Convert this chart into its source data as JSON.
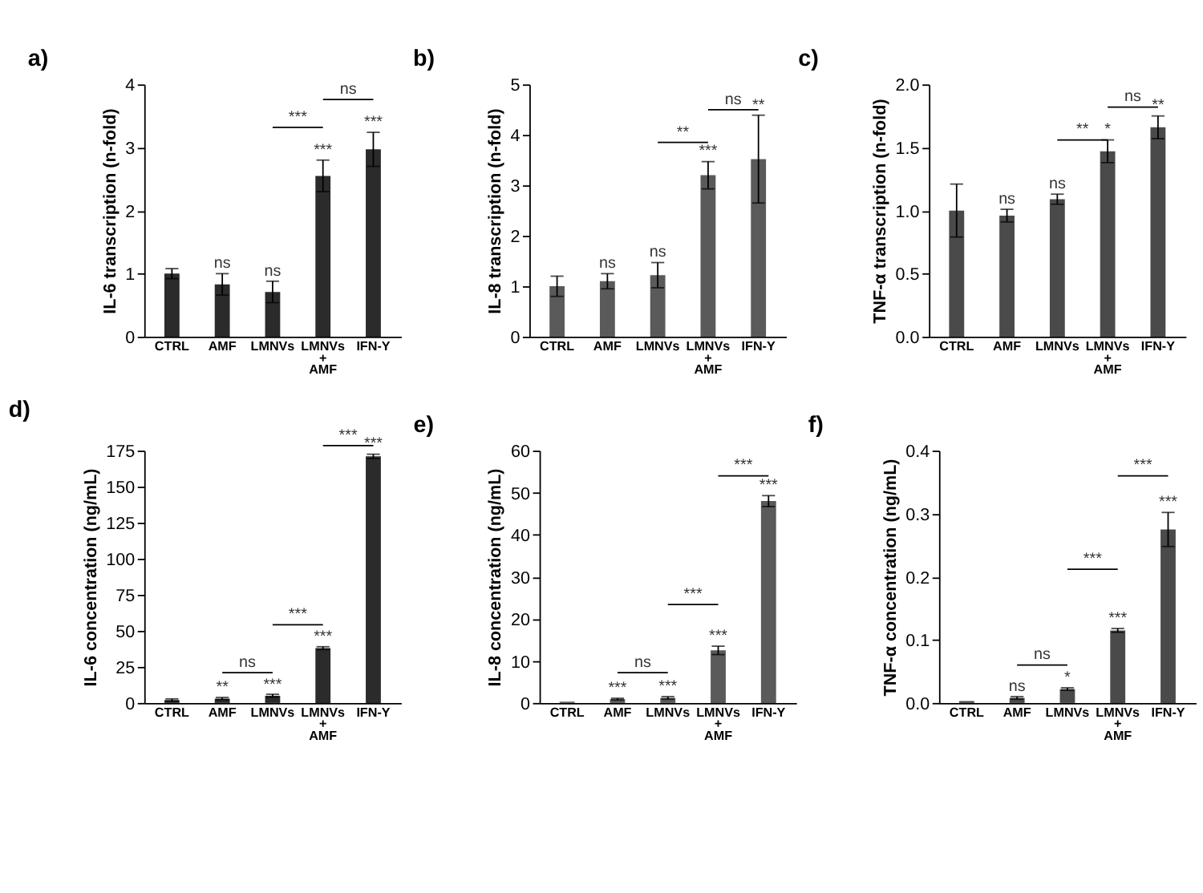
{
  "chart_data": [
    {
      "type": "bar",
      "title": "a)",
      "ylabel": "IL-6 transcription (n-fold)",
      "categories": [
        "CTRL",
        "AMF",
        "LMNVs",
        "LMNVs + AMF",
        "IFN-Y"
      ],
      "values": [
        1.0,
        0.83,
        0.71,
        2.55,
        2.97
      ],
      "errors": [
        0.08,
        0.17,
        0.17,
        0.25,
        0.27
      ],
      "color": "#2b2b2b",
      "ylim": [
        0,
        4
      ],
      "yticks": [
        0,
        1,
        2,
        3,
        4
      ],
      "grid": false,
      "annotations": [
        "***",
        "ns",
        {
          "text": "ns",
          "x": "AMF",
          "y": 1.0
        },
        {
          "text": "ns",
          "x": "LMNVs",
          "y": 0.88
        },
        {
          "text": "***",
          "x": "LMNVs + AMF",
          "y": 2.8
        },
        {
          "text": "***",
          "x": "IFN-Y",
          "y": 3.24
        }
      ]
    },
    {
      "type": "bar",
      "title": "b)",
      "ylabel": "IL-8 transcription (n-fold)",
      "categories": [
        "CTRL",
        "AMF",
        "LMNVs",
        "LMNVs + AMF",
        "IFN-Y"
      ],
      "values": [
        1.0,
        1.1,
        1.22,
        3.2,
        3.52
      ],
      "errors": [
        0.2,
        0.15,
        0.25,
        0.27,
        0.87
      ],
      "color": "#5a5a5a",
      "ylim": [
        0,
        5
      ],
      "yticks": [
        0,
        1,
        2,
        3,
        4,
        5
      ],
      "grid": false,
      "annotations": [
        "**",
        "ns",
        {
          "text": "ns",
          "x": "AMF",
          "y": 1.25
        },
        {
          "text": "ns",
          "x": "LMNVs",
          "y": 1.47
        },
        {
          "text": "***",
          "x": "LMNVs + AMF",
          "y": 3.47
        },
        {
          "text": "**",
          "x": "IFN-Y",
          "y": 4.39
        }
      ]
    },
    {
      "type": "bar",
      "title": "c)",
      "ylabel": "TNF-α transcription (n-fold)",
      "categories": [
        "CTRL",
        "AMF",
        "LMNVs",
        "LMNVs + AMF",
        "IFN-Y"
      ],
      "values": [
        1.0,
        0.96,
        1.09,
        1.47,
        1.66
      ],
      "errors": [
        0.21,
        0.05,
        0.04,
        0.09,
        0.09
      ],
      "color": "#4a4a4a",
      "ylim": [
        0,
        2
      ],
      "yticks": [
        {
          "value": 0,
          "label": "0.0"
        },
        {
          "value": 0.5,
          "label": "0.5"
        },
        {
          "value": 1,
          "label": "1.0"
        },
        {
          "value": 1.5,
          "label": "1.5"
        },
        {
          "value": 2,
          "label": "2.0"
        }
      ],
      "grid": false,
      "annotations": [
        "**",
        "ns",
        {
          "text": "ns",
          "x": "AMF",
          "y": 1.01
        },
        {
          "text": "ns",
          "x": "LMNVs",
          "y": 1.13
        },
        {
          "text": "*",
          "x": "LMNVs + AMF",
          "y": 1.56
        },
        {
          "text": "**",
          "x": "IFN-Y",
          "y": 1.75
        }
      ]
    },
    {
      "type": "bar",
      "title": "d)",
      "ylabel": "IL-6 concentration (ng/mL)",
      "categories": [
        "CTRL",
        "AMF",
        "LMNVs",
        "LMNVs + AMF",
        "IFN-Y"
      ],
      "values": [
        2,
        3,
        5,
        38,
        171
      ],
      "errors": [
        0.8,
        0.8,
        1,
        1,
        1.5
      ],
      "color": "#2b2b2b",
      "ylim": [
        0,
        175
      ],
      "yticks": [
        0,
        25,
        50,
        75,
        100,
        125,
        150,
        175
      ],
      "grid": false,
      "annotations": [
        "ns",
        "***",
        "***",
        {
          "text": "**",
          "x": "AMF",
          "y": 3.8
        },
        {
          "text": "***",
          "x": "LMNVs",
          "y": 5.5
        },
        {
          "text": "***",
          "x": "LMNVs + AMF",
          "y": 39
        },
        {
          "text": "***",
          "x": "IFN-Y",
          "y": 172.5
        }
      ]
    },
    {
      "type": "bar",
      "title": "e)",
      "ylabel": "IL-8 concentration (ng/mL)",
      "categories": [
        "CTRL",
        "AMF",
        "LMNVs",
        "LMNVs + AMF",
        "IFN-Y"
      ],
      "values": [
        0.3,
        0.9,
        1.2,
        12.5,
        48
      ],
      "errors": [
        null,
        0.2,
        0.3,
        1,
        1.3
      ],
      "color": "#5a5a5a",
      "ylim": [
        0,
        60
      ],
      "yticks": [
        0,
        10,
        20,
        30,
        40,
        50,
        60
      ],
      "grid": false,
      "annotations": [
        "ns",
        "***",
        "***",
        {
          "text": "***",
          "x": "AMF",
          "y": 1.1
        },
        {
          "text": "***",
          "x": "LMNVs",
          "y": 1.5
        },
        {
          "text": "***",
          "x": "LMNVs + AMF",
          "y": 13.5
        },
        {
          "text": "***",
          "x": "IFN-Y",
          "y": 49.3
        }
      ]
    },
    {
      "type": "bar",
      "title": "f)",
      "ylabel": "TNF-α concentration (ng/mL)",
      "categories": [
        "CTRL",
        "AMF",
        "LMNVs",
        "LMNVs + AMF",
        "IFN-Y"
      ],
      "values": [
        0.003,
        0.008,
        0.022,
        0.115,
        0.275
      ],
      "errors": [
        null,
        0.002,
        0.002,
        0.003,
        0.027
      ],
      "color": "#4a4a4a",
      "ylim": [
        0,
        0.4
      ],
      "yticks": [
        {
          "value": 0,
          "label": "0.0"
        },
        0.1,
        0.2,
        0.3,
        0.4
      ],
      "grid": false,
      "annotations": [
        "ns",
        "***",
        "***",
        {
          "text": "ns",
          "x": "AMF",
          "y": 0.01
        },
        {
          "text": "*",
          "x": "LMNVs",
          "y": 0.024
        },
        {
          "text": "***",
          "x": "LMNVs + AMF",
          "y": 0.118
        },
        {
          "text": "***",
          "x": "IFN-Y",
          "y": 0.302
        }
      ]
    }
  ]
}
